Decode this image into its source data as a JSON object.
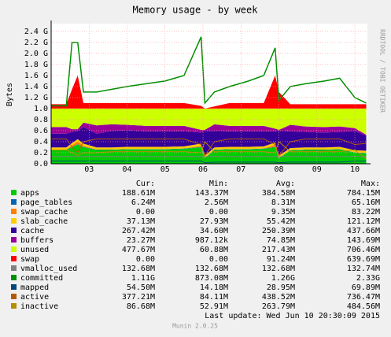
{
  "chart_data": {
    "type": "area",
    "title": "Memory usage - by week",
    "y_label": "Bytes",
    "side_label": "RRDTOOL / TOBI OETIKER",
    "footer": "Last update:  Wed Jun 10 20:30:09 2015",
    "version": "Munin 2.0.25",
    "stat_headers": [
      "Cur:",
      "Min:",
      "Avg:",
      "Max:"
    ],
    "x": [
      2.0,
      2.4,
      2.55,
      2.7,
      2.85,
      3.2,
      3.6,
      4.0,
      4.5,
      5.0,
      5.5,
      5.95,
      6.05,
      6.3,
      6.7,
      7.2,
      7.6,
      7.9,
      8.0,
      8.3,
      8.7,
      9.2,
      9.6,
      10.0,
      10.3
    ],
    "xlim": [
      2.0,
      10.33
    ],
    "xticks": [
      {
        "value": 3,
        "label": "03"
      },
      {
        "value": 4,
        "label": "04"
      },
      {
        "value": 5,
        "label": "05"
      },
      {
        "value": 6,
        "label": "06"
      },
      {
        "value": 7,
        "label": "07"
      },
      {
        "value": 8,
        "label": "08"
      },
      {
        "value": 9,
        "label": "09"
      },
      10
    ],
    "ylim": [
      0,
      2.54
    ],
    "yticks": [
      {
        "value": 0,
        "label": "0.0"
      },
      0.2,
      0.4,
      0.6,
      0.8,
      {
        "value": 1,
        "label": "1.0"
      },
      {
        "value": 1.2,
        "label": "1.2 G"
      },
      {
        "value": 1.4,
        "label": "1.4 G"
      },
      {
        "value": 1.6,
        "label": "1.6 G"
      },
      {
        "value": 1.8,
        "label": "1.8 G"
      },
      {
        "value": 2,
        "label": "2.0 G"
      },
      {
        "value": 2.2,
        "label": "2.2 G"
      },
      {
        "value": 2.4,
        "label": "2.4 G"
      }
    ],
    "grid": true,
    "series": [
      {
        "name": "apps",
        "color": "#00cc00",
        "stacked": true,
        "cur": "188.61M",
        "min": "143.37M",
        "avg": "384.58M",
        "max": "784.15M",
        "values": [
          0.25,
          0.25,
          0.3,
          0.35,
          0.3,
          0.25,
          0.25,
          0.26,
          0.26,
          0.26,
          0.27,
          0.3,
          0.1,
          0.25,
          0.26,
          0.26,
          0.27,
          0.3,
          0.1,
          0.24,
          0.25,
          0.25,
          0.26,
          0.2,
          0.19
        ]
      },
      {
        "name": "page_tables",
        "color": "#0066b3",
        "stacked": true,
        "cur": "6.24M",
        "min": "2.56M",
        "avg": "8.31M",
        "max": "65.16M",
        "values": [
          0.006,
          0.006,
          0.006,
          0.006,
          0.006,
          0.006,
          0.006,
          0.006,
          0.006,
          0.006,
          0.006,
          0.006,
          0.006,
          0.006,
          0.006,
          0.006,
          0.006,
          0.006,
          0.006,
          0.006,
          0.006,
          0.006,
          0.006,
          0.006,
          0.006
        ]
      },
      {
        "name": "swap_cache",
        "color": "#ff8000",
        "stacked": true,
        "cur": "0.00",
        "min": "0.00",
        "avg": "9.35M",
        "max": "83.22M",
        "values": [
          0,
          0,
          0.03,
          0.05,
          0.02,
          0,
          0,
          0,
          0,
          0,
          0,
          0.02,
          0,
          0,
          0,
          0,
          0,
          0.04,
          0,
          0,
          0,
          0,
          0,
          0,
          0
        ]
      },
      {
        "name": "slab_cache",
        "color": "#ffcc00",
        "stacked": true,
        "cur": "37.13M",
        "min": "27.93M",
        "avg": "55.42M",
        "max": "121.12M",
        "values": [
          0.04,
          0.04,
          0.04,
          0.04,
          0.04,
          0.04,
          0.04,
          0.04,
          0.04,
          0.04,
          0.04,
          0.04,
          0.04,
          0.04,
          0.04,
          0.04,
          0.04,
          0.04,
          0.04,
          0.04,
          0.04,
          0.04,
          0.04,
          0.04,
          0.04
        ]
      },
      {
        "name": "cache",
        "color": "#330099",
        "stacked": true,
        "cur": "267.42M",
        "min": "34.60M",
        "avg": "250.39M",
        "max": "437.66M",
        "values": [
          0.25,
          0.25,
          0.2,
          0.15,
          0.3,
          0.25,
          0.3,
          0.3,
          0.28,
          0.28,
          0.27,
          0.2,
          0.45,
          0.3,
          0.28,
          0.28,
          0.27,
          0.2,
          0.45,
          0.3,
          0.28,
          0.27,
          0.27,
          0.35,
          0.27
        ]
      },
      {
        "name": "buffers",
        "color": "#990099",
        "stacked": true,
        "cur": "23.27M",
        "min": "987.12k",
        "avg": "74.85M",
        "max": "143.69M",
        "values": [
          0.12,
          0.12,
          0.05,
          0.03,
          0.08,
          0.15,
          0.12,
          0.1,
          0.1,
          0.1,
          0.1,
          0.05,
          0.02,
          0.12,
          0.1,
          0.1,
          0.1,
          0.05,
          0.02,
          0.12,
          0.1,
          0.1,
          0.1,
          0.05,
          0.02
        ]
      },
      {
        "name": "unused",
        "color": "#ccff00",
        "stacked": true,
        "cur": "477.67M",
        "min": "60.88M",
        "avg": "217.43M",
        "max": "706.46M",
        "values": [
          0.334,
          0.334,
          0.374,
          0.374,
          0.254,
          0.304,
          0.284,
          0.294,
          0.314,
          0.314,
          0.314,
          0.384,
          0.384,
          0.284,
          0.314,
          0.314,
          0.314,
          0.364,
          0.384,
          0.294,
          0.324,
          0.334,
          0.324,
          0.354,
          0.474
        ]
      },
      {
        "name": "swap",
        "color": "#ff0000",
        "stacked": true,
        "cur": "0.00",
        "min": "0.00",
        "avg": "91.24M",
        "max": "639.69M",
        "values": [
          0.08,
          0.08,
          0.35,
          0.6,
          0.1,
          0.1,
          0.1,
          0.1,
          0.1,
          0.1,
          0.1,
          0.05,
          0,
          0.04,
          0.1,
          0.1,
          0.1,
          0.6,
          0.3,
          0.08,
          0.08,
          0.08,
          0.08,
          0.08,
          0.08
        ]
      },
      {
        "name": "vmalloc_used",
        "color": "#808080",
        "stacked": false,
        "cur": "132.68M",
        "min": "132.68M",
        "avg": "132.68M",
        "max": "132.74M",
        "values": [
          0.13,
          0.13,
          0.13,
          0.13,
          0.13,
          0.13,
          0.13,
          0.13,
          0.13,
          0.13,
          0.13,
          0.13,
          0.13,
          0.13,
          0.13,
          0.13,
          0.13,
          0.13,
          0.13,
          0.13,
          0.13,
          0.13,
          0.13,
          0.13,
          0.13
        ]
      },
      {
        "name": "committed",
        "color": "#008f00",
        "stacked": false,
        "cur": "1.11G",
        "min": "873.08M",
        "avg": "1.26G",
        "max": "2.33G",
        "values": [
          1.05,
          1.05,
          2.2,
          2.2,
          1.3,
          1.3,
          1.35,
          1.4,
          1.45,
          1.5,
          1.6,
          2.3,
          1.1,
          1.3,
          1.4,
          1.5,
          1.6,
          2.1,
          1.15,
          1.4,
          1.45,
          1.5,
          1.55,
          1.2,
          1.1
        ]
      },
      {
        "name": "mapped",
        "color": "#00487d",
        "stacked": false,
        "cur": "54.50M",
        "min": "14.18M",
        "avg": "28.95M",
        "max": "69.89M",
        "values": [
          0.05,
          0.05,
          0.05,
          0.05,
          0.05,
          0.05,
          0.05,
          0.05,
          0.05,
          0.05,
          0.05,
          0.05,
          0.02,
          0.03,
          0.03,
          0.03,
          0.03,
          0.03,
          0.02,
          0.03,
          0.03,
          0.03,
          0.03,
          0.05,
          0.05
        ]
      },
      {
        "name": "active",
        "color": "#b35a00",
        "stacked": false,
        "cur": "377.21M",
        "min": "84.11M",
        "avg": "438.52M",
        "max": "736.47M",
        "values": [
          0.45,
          0.45,
          0.3,
          0.2,
          0.4,
          0.45,
          0.45,
          0.45,
          0.45,
          0.45,
          0.45,
          0.35,
          0.15,
          0.4,
          0.45,
          0.45,
          0.45,
          0.35,
          0.15,
          0.4,
          0.45,
          0.45,
          0.45,
          0.35,
          0.37
        ]
      },
      {
        "name": "inactive",
        "color": "#b38f00",
        "stacked": false,
        "cur": "86.68M",
        "min": "52.91M",
        "avg": "263.79M",
        "max": "484.56M",
        "values": [
          0.25,
          0.25,
          0.2,
          0.15,
          0.2,
          0.2,
          0.22,
          0.22,
          0.22,
          0.22,
          0.22,
          0.2,
          0.4,
          0.22,
          0.22,
          0.22,
          0.22,
          0.2,
          0.4,
          0.22,
          0.22,
          0.22,
          0.22,
          0.25,
          0.09
        ]
      }
    ]
  }
}
